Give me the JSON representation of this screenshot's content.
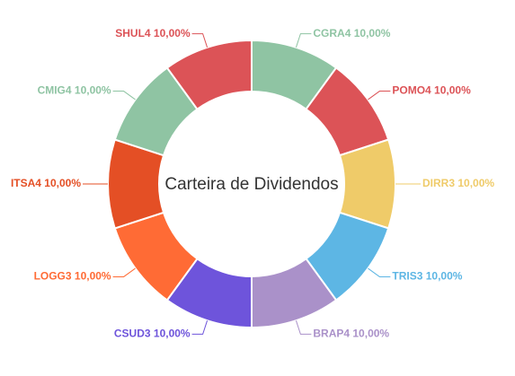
{
  "chart_data": {
    "type": "pie",
    "donut": true,
    "title": "Carteira de Dividendos",
    "slices": [
      {
        "name": "CGRA4",
        "value": 10.0,
        "label": "CGRA4 10,00%",
        "color": "#8FC4A3"
      },
      {
        "name": "POMO4",
        "value": 10.0,
        "label": "POMO4 10,00%",
        "color": "#DC5357"
      },
      {
        "name": "DIRR3",
        "value": 10.0,
        "label": "DIRR3 10,00%",
        "color": "#EFCB69"
      },
      {
        "name": "TRIS3",
        "value": 10.0,
        "label": "TRIS3 10,00%",
        "color": "#5DB6E4"
      },
      {
        "name": "BRAP4",
        "value": 10.0,
        "label": "BRAP4 10,00%",
        "color": "#AA91C9"
      },
      {
        "name": "CSUD3",
        "value": 10.0,
        "label": "CSUD3 10,00%",
        "color": "#6E54DB"
      },
      {
        "name": "LOGG3",
        "value": 10.0,
        "label": "LOGG3 10,00%",
        "color": "#FF6B35"
      },
      {
        "name": "ITSA4",
        "value": 10.0,
        "label": "ITSA4 10,00%",
        "color": "#E44F25"
      },
      {
        "name": "CMIG4",
        "value": 10.0,
        "label": "CMIG4 10,00%",
        "color": "#8FC4A3"
      },
      {
        "name": "SHUL4",
        "value": 10.0,
        "label": "SHUL4 10,00%",
        "color": "#DC5357"
      }
    ]
  }
}
